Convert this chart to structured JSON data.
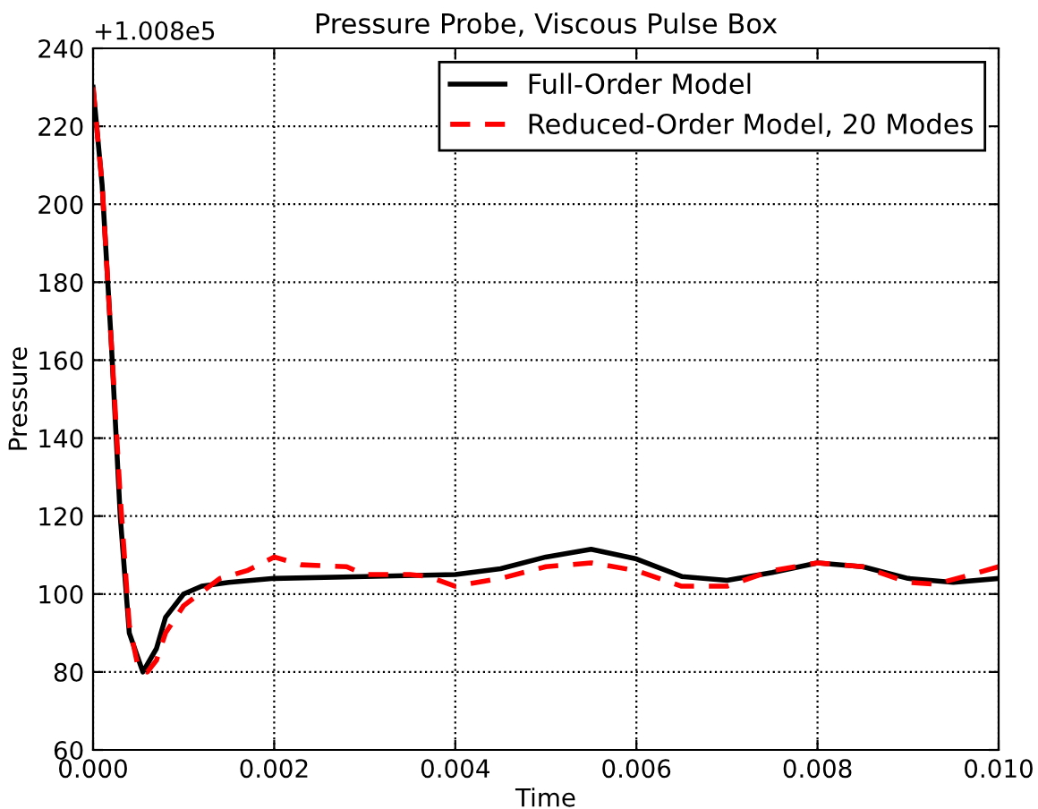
{
  "chart_data": {
    "type": "line",
    "title": "Pressure Probe, Viscous Pulse Box",
    "xlabel": "Time",
    "ylabel": "Pressure",
    "annotations": [
      "+1.008e5"
    ],
    "series": [
      {
        "name": "Full-Order Model",
        "color": "#000000",
        "line_style": "solid",
        "x": [
          0,
          0.0001,
          0.0002,
          0.0003,
          0.0004,
          0.00055,
          0.0007,
          0.0008,
          0.001,
          0.0012,
          0.0015,
          0.002,
          0.003,
          0.004,
          0.0045,
          0.005,
          0.0055,
          0.006,
          0.0065,
          0.007,
          0.0075,
          0.008,
          0.0085,
          0.009,
          0.0095,
          0.01
        ],
        "values": [
          230,
          205,
          165,
          120,
          90,
          80,
          86,
          94,
          100,
          102,
          103,
          104,
          104.5,
          105,
          106.5,
          109.5,
          111.5,
          109,
          104.5,
          103.5,
          105.5,
          108,
          107,
          104,
          103,
          104
        ]
      },
      {
        "name": "Reduced-Order Model, 20 Modes",
        "color": "#ff0000",
        "line_style": "dashed",
        "x": [
          0,
          0.0001,
          0.0002,
          0.0003,
          0.0004,
          0.0005,
          0.0006,
          0.0007,
          0.0008,
          0.001,
          0.0014,
          0.0017,
          0.002,
          0.0023,
          0.0028,
          0.003,
          0.0035,
          0.0037,
          0.004,
          0.0045,
          0.005,
          0.0055,
          0.006,
          0.0065,
          0.007,
          0.0075,
          0.008,
          0.0085,
          0.009,
          0.0093,
          0.0097,
          0.01
        ],
        "values": [
          230,
          205,
          165,
          125,
          92,
          81,
          80,
          83,
          90,
          97,
          104,
          106,
          109.5,
          107.5,
          107,
          105,
          105,
          104.5,
          102,
          104,
          107,
          108,
          106,
          102,
          102,
          106,
          108,
          107,
          103,
          102.5,
          105,
          107
        ]
      }
    ],
    "xlim": [
      0,
      0.01
    ],
    "xticks": [
      {
        "value": 0,
        "label": "0.000"
      },
      {
        "value": 0.002,
        "label": "0.002"
      },
      {
        "value": 0.004,
        "label": "0.004"
      },
      {
        "value": 0.006,
        "label": "0.006"
      },
      {
        "value": 0.008,
        "label": "0.008"
      },
      {
        "value": 0.01,
        "label": "0.010"
      }
    ],
    "ylim": [
      60,
      240
    ],
    "yticks": [
      60,
      80,
      100,
      120,
      140,
      160,
      180,
      200,
      220,
      240
    ],
    "grid": true,
    "legend": "top right",
    "marker": "none"
  }
}
